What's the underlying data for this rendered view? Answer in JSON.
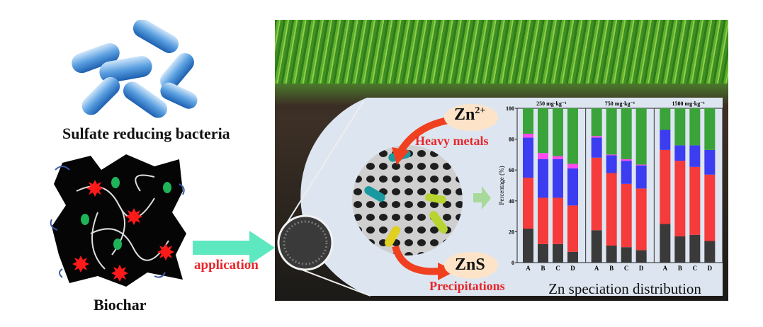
{
  "left": {
    "bacteria_label": "Sulfate reducing bacteria",
    "biochar_label": "Biochar",
    "arrow_label": "application"
  },
  "mechanism": {
    "zn_ion": "Zn",
    "zn_ion_charge": "2+",
    "heavy_metals_label": "Heavy metals",
    "zns_label": "ZnS",
    "precipitations_label": "Precipitations"
  },
  "colors": {
    "accent_red": "#e8262b",
    "arrow_cyan": "#5ee8c0",
    "panel": "#dde6f0",
    "bubble": "#fde4c9"
  },
  "chart_data": {
    "type": "bar",
    "stacked": true,
    "title": "Zn speciation distribution",
    "ylabel": "Percentage (%)",
    "ylim": [
      0,
      100
    ],
    "yticks": [
      0,
      20,
      40,
      60,
      80,
      100
    ],
    "groups": [
      {
        "label": "250 mg·kg⁻¹",
        "categories": [
          "A",
          "B",
          "C",
          "D"
        ]
      },
      {
        "label": "750 mg·kg⁻¹",
        "categories": [
          "A",
          "B",
          "C",
          "D"
        ]
      },
      {
        "label": "1500 mg·kg⁻¹",
        "categories": [
          "A",
          "B",
          "C",
          "D"
        ]
      }
    ],
    "series": [
      {
        "color": "#3a3a3a",
        "values": [
          22,
          12,
          12,
          7,
          21,
          11,
          10,
          8,
          25,
          17,
          18,
          14
        ]
      },
      {
        "color": "#f53b3b",
        "values": [
          33,
          30,
          30,
          30,
          47,
          47,
          41,
          40,
          48,
          49,
          44,
          43
        ]
      },
      {
        "color": "#3c3cf0",
        "values": [
          26,
          25,
          25,
          24,
          13,
          11.5,
          15,
          15,
          13,
          10,
          14,
          16
        ]
      },
      {
        "color": "#ff4af0",
        "values": [
          2.5,
          4,
          2,
          3,
          1,
          0.5,
          1,
          0.5,
          0,
          0,
          0,
          0
        ]
      },
      {
        "color": "#3aa33a",
        "values": [
          16.5,
          29,
          31,
          36,
          18,
          30,
          33,
          36.5,
          14,
          24,
          24,
          27
        ]
      }
    ]
  }
}
